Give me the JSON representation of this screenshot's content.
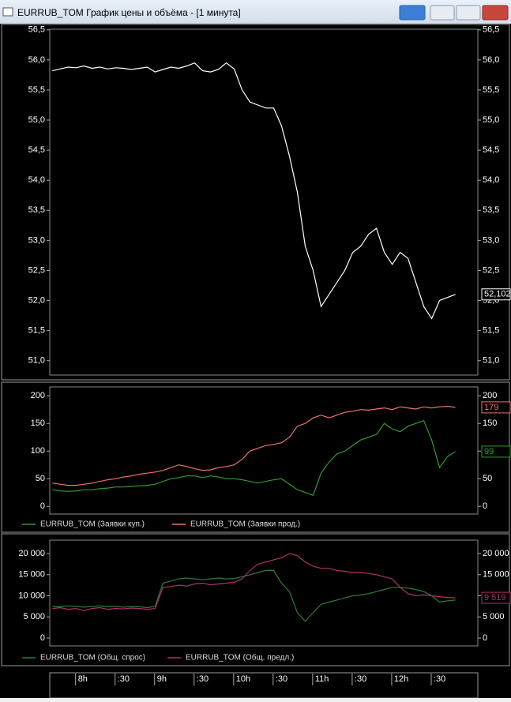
{
  "window": {
    "title": "EURRUB_TOM График цены и объёма - [1 минута]"
  },
  "chart_data": [
    {
      "type": "line",
      "color": "#ffffff",
      "ylim": [
        50.76,
        56.51
      ],
      "yticks": [
        {
          "value": 51,
          "label": "51,0"
        },
        {
          "value": 51.5,
          "label": "51,5"
        },
        {
          "value": 52,
          "label": "52,0"
        },
        {
          "value": 52.5,
          "label": "52,5"
        },
        {
          "value": 53,
          "label": "53,0"
        },
        {
          "value": 53.5,
          "label": "53,5"
        },
        {
          "value": 54,
          "label": "54,0"
        },
        {
          "value": 54.5,
          "label": "54,5"
        },
        {
          "value": 55,
          "label": "55,0"
        },
        {
          "value": 55.5,
          "label": "55,5"
        },
        {
          "value": 56,
          "label": "56,0"
        },
        {
          "value": 56.5,
          "label": "56,5"
        }
      ],
      "xlim": [
        458,
        783
      ],
      "xticks": [
        {
          "value": 480,
          "label": "8h"
        },
        {
          "value": 510,
          "label": ":30"
        },
        {
          "value": 540,
          "label": "9h"
        },
        {
          "value": 570,
          "label": ":30"
        },
        {
          "value": 600,
          "label": "10h"
        },
        {
          "value": 630,
          "label": ":30"
        },
        {
          "value": 660,
          "label": "11h"
        },
        {
          "value": 690,
          "label": ":30"
        },
        {
          "value": 720,
          "label": "12h"
        },
        {
          "value": 750,
          "label": ":30"
        }
      ],
      "x": [
        460,
        466,
        472,
        478,
        484,
        490,
        496,
        502,
        508,
        514,
        520,
        526,
        532,
        538,
        544,
        550,
        556,
        562,
        568,
        574,
        580,
        586,
        592,
        598,
        604,
        610,
        616,
        622,
        628,
        634,
        640,
        646,
        652,
        658,
        664,
        670,
        676,
        682,
        688,
        694,
        700,
        706,
        712,
        718,
        724,
        730,
        736,
        742,
        748,
        754,
        760,
        766
      ],
      "values": [
        55.82,
        55.85,
        55.88,
        55.87,
        55.9,
        55.86,
        55.88,
        55.85,
        55.87,
        55.86,
        55.84,
        55.86,
        55.88,
        55.8,
        55.84,
        55.88,
        55.86,
        55.9,
        55.95,
        55.82,
        55.8,
        55.84,
        55.95,
        55.85,
        55.5,
        55.3,
        55.25,
        55.2,
        55.2,
        54.9,
        54.4,
        53.8,
        52.9,
        52.5,
        51.9,
        52.1,
        52.3,
        52.5,
        52.8,
        52.9,
        53.1,
        53.2,
        52.8,
        52.6,
        52.8,
        52.7,
        52.3,
        51.9,
        51.7,
        52.0,
        52.05,
        52.102
      ],
      "value_labels": [
        null,
        null,
        null,
        null,
        null,
        null,
        null,
        null,
        null,
        null,
        null,
        null,
        null,
        null,
        null,
        null,
        null,
        null,
        null,
        null,
        null,
        null,
        null,
        null,
        null,
        null,
        null,
        null,
        null,
        null,
        null,
        null,
        null,
        null,
        null,
        null,
        null,
        null,
        null,
        null,
        null,
        null,
        null,
        null,
        null,
        null,
        null,
        null,
        null,
        null,
        null,
        "52,102"
      ]
    },
    {
      "type": "line",
      "ylim": [
        -14,
        216
      ],
      "yticks": [
        0,
        50,
        100,
        150,
        200
      ],
      "x": [
        460,
        466,
        472,
        478,
        484,
        490,
        496,
        502,
        508,
        514,
        520,
        526,
        532,
        538,
        544,
        550,
        556,
        562,
        568,
        574,
        580,
        586,
        592,
        598,
        604,
        610,
        616,
        622,
        628,
        634,
        640,
        646,
        652,
        658,
        664,
        670,
        676,
        682,
        688,
        694,
        700,
        706,
        712,
        718,
        724,
        730,
        736,
        742,
        748,
        754,
        760,
        766
      ],
      "series": [
        {
          "name": "EURRUB_TOM (Заявки куп.)",
          "color": "#2f9a2f",
          "values": [
            30,
            28,
            27,
            28,
            30,
            30,
            32,
            33,
            35,
            35,
            36,
            37,
            38,
            40,
            45,
            50,
            52,
            55,
            55,
            52,
            55,
            53,
            50,
            50,
            48,
            45,
            42,
            45,
            48,
            50,
            40,
            30,
            25,
            20,
            60,
            80,
            95,
            100,
            110,
            120,
            125,
            130,
            150,
            140,
            135,
            145,
            150,
            155,
            120,
            70,
            90,
            99
          ]
        },
        {
          "name": "EURRUB_TOM (Заявки прод.)",
          "color": "#f07070",
          "values": [
            42,
            40,
            38,
            38,
            40,
            42,
            45,
            48,
            50,
            53,
            55,
            58,
            60,
            62,
            65,
            70,
            75,
            72,
            68,
            65,
            66,
            70,
            72,
            75,
            85,
            100,
            105,
            110,
            112,
            115,
            125,
            145,
            150,
            160,
            165,
            160,
            165,
            170,
            172,
            175,
            174,
            176,
            178,
            175,
            180,
            178,
            176,
            180,
            178,
            180,
            181,
            179
          ]
        }
      ]
    },
    {
      "type": "line",
      "ylim": [
        -1870,
        23180
      ],
      "yticks": [
        0,
        {
          "value": 5000,
          "label": "5 000"
        },
        {
          "value": 10000,
          "label": "10 000"
        },
        {
          "value": 15000,
          "label": "15 000"
        },
        {
          "value": 20000,
          "label": "20 000"
        }
      ],
      "x": [
        460,
        466,
        472,
        478,
        484,
        490,
        496,
        502,
        508,
        514,
        520,
        526,
        532,
        538,
        544,
        550,
        556,
        562,
        568,
        574,
        580,
        586,
        592,
        598,
        604,
        610,
        616,
        622,
        628,
        634,
        640,
        646,
        652,
        658,
        664,
        670,
        676,
        682,
        688,
        694,
        700,
        706,
        712,
        718,
        724,
        730,
        736,
        742,
        748,
        754,
        760,
        766
      ],
      "series": [
        {
          "name": "EURRUB_TOM (Общ. спрос)",
          "color": "#2e7d32",
          "values": [
            7500,
            7400,
            7600,
            7500,
            7300,
            7500,
            7600,
            7400,
            7500,
            7300,
            7500,
            7400,
            7200,
            7500,
            13000,
            13500,
            14000,
            14200,
            14000,
            13800,
            14000,
            14200,
            14000,
            14100,
            14500,
            15000,
            15500,
            16000,
            16000,
            13000,
            11000,
            6000,
            4000,
            6000,
            8000,
            8500,
            9000,
            9500,
            10000,
            10200,
            10500,
            11000,
            11500,
            12000,
            12000,
            11800,
            11500,
            11000,
            10000,
            8500,
            8800,
            9000
          ]
        },
        {
          "name": "EURRUB_TOM (Общ. предл.)",
          "color": "#b0306a",
          "values": [
            7000,
            7200,
            6800,
            7000,
            6500,
            7000,
            7200,
            6800,
            7000,
            6900,
            7100,
            7000,
            6800,
            7000,
            12000,
            12200,
            12500,
            12300,
            12800,
            13000,
            12600,
            12800,
            13000,
            13200,
            14000,
            16000,
            17500,
            18000,
            18500,
            19000,
            20000,
            19500,
            18000,
            17000,
            16500,
            16500,
            16000,
            15800,
            15500,
            15500,
            15300,
            15000,
            14500,
            14000,
            12000,
            10500,
            10000,
            10200,
            10000,
            9800,
            9600,
            9519
          ],
          "value_labels": [
            null,
            null,
            null,
            null,
            null,
            null,
            null,
            null,
            null,
            null,
            null,
            null,
            null,
            null,
            null,
            null,
            null,
            null,
            null,
            null,
            null,
            null,
            null,
            null,
            null,
            null,
            null,
            null,
            null,
            null,
            null,
            null,
            null,
            null,
            null,
            null,
            null,
            null,
            null,
            null,
            null,
            null,
            null,
            null,
            null,
            null,
            null,
            null,
            null,
            null,
            null,
            "9 519"
          ]
        }
      ]
    }
  ]
}
